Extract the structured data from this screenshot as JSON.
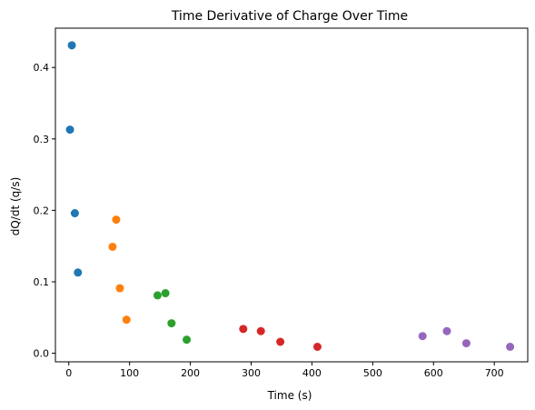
{
  "chart_data": {
    "type": "scatter",
    "title": "Time Derivative of Charge Over Time",
    "xlabel": "Time (s)",
    "ylabel": "dQ/dt (q/s)",
    "xlim": [
      -22,
      755
    ],
    "ylim": [
      -0.012,
      0.455
    ],
    "xticks": [
      0,
      100,
      200,
      300,
      400,
      500,
      600,
      700
    ],
    "xtick_labels": [
      "0",
      "100",
      "200",
      "300",
      "400",
      "500",
      "600",
      "700"
    ],
    "yticks": [
      0.0,
      0.1,
      0.2,
      0.3,
      0.4
    ],
    "ytick_labels": [
      "0.0",
      "0.1",
      "0.2",
      "0.3",
      "0.4"
    ],
    "grid": false,
    "legend": "none",
    "series": [
      {
        "color": "#1f77b4",
        "points": [
          [
            5,
            0.431
          ],
          [
            2,
            0.313
          ],
          [
            10,
            0.196
          ],
          [
            15,
            0.113
          ]
        ]
      },
      {
        "color": "#ff7f0e",
        "points": [
          [
            78,
            0.187
          ],
          [
            72,
            0.149
          ],
          [
            84,
            0.091
          ],
          [
            95,
            0.047
          ]
        ]
      },
      {
        "color": "#2ca02c",
        "points": [
          [
            146,
            0.081
          ],
          [
            159,
            0.084
          ],
          [
            169,
            0.042
          ],
          [
            194,
            0.019
          ]
        ]
      },
      {
        "color": "#d62728",
        "points": [
          [
            287,
            0.034
          ],
          [
            316,
            0.031
          ],
          [
            348,
            0.016
          ],
          [
            409,
            0.009
          ]
        ]
      },
      {
        "color": "#9467bd",
        "points": [
          [
            582,
            0.024
          ],
          [
            622,
            0.031
          ],
          [
            654,
            0.014
          ],
          [
            726,
            0.009
          ]
        ]
      }
    ]
  }
}
